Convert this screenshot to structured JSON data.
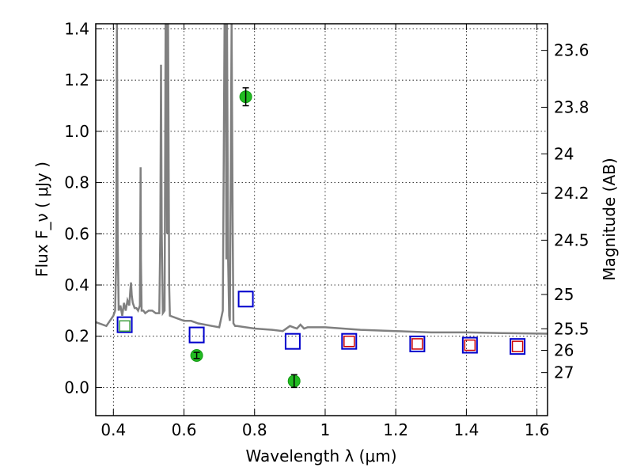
{
  "chart_data": {
    "type": "scatter",
    "title": "",
    "xlabel": "Wavelength  λ (μm)",
    "ylabel": "Flux  F_ν  ( μJy )",
    "ylabel_right": "Magnitude (AB)",
    "xlim": [
      0.35,
      1.63
    ],
    "ylim": [
      -0.11,
      1.42
    ],
    "grid": true,
    "x_ticks": [
      0.4,
      0.6,
      0.8,
      1.0,
      1.2,
      1.4,
      1.6
    ],
    "x_tick_labels": [
      "0.4",
      "0.6",
      "0.8",
      "1",
      "1.2",
      "1.4",
      "1.6"
    ],
    "y_ticks": [
      0.0,
      0.2,
      0.4,
      0.6,
      0.8,
      1.0,
      1.2,
      1.4
    ],
    "y_tick_labels": [
      "0.0",
      "0.2",
      "0.4",
      "0.6",
      "0.8",
      "1.0",
      "1.2",
      "1.4"
    ],
    "y2_ticks": [
      {
        "label": "23.6",
        "flux": 1.316
      },
      {
        "label": "23.8",
        "flux": 1.094
      },
      {
        "label": "24",
        "flux": 0.912
      },
      {
        "label": "24.2",
        "flux": 0.758
      },
      {
        "label": "24.5",
        "flux": 0.575
      },
      {
        "label": "25",
        "flux": 0.363
      },
      {
        "label": "25.5",
        "flux": 0.229
      },
      {
        "label": "26",
        "flux": 0.145
      },
      {
        "label": "27",
        "flux": 0.058
      }
    ],
    "model_spectrum": {
      "color": "#808080",
      "x": [
        0.35,
        0.38,
        0.4,
        0.405,
        0.408,
        0.41,
        0.412,
        0.415,
        0.42,
        0.425,
        0.43,
        0.435,
        0.44,
        0.445,
        0.448,
        0.45,
        0.452,
        0.455,
        0.46,
        0.465,
        0.47,
        0.475,
        0.477,
        0.478,
        0.48,
        0.485,
        0.49,
        0.5,
        0.51,
        0.52,
        0.53,
        0.533,
        0.535,
        0.537,
        0.54,
        0.545,
        0.548,
        0.55,
        0.552,
        0.555,
        0.558,
        0.56,
        0.58,
        0.6,
        0.62,
        0.64,
        0.66,
        0.68,
        0.7,
        0.71,
        0.715,
        0.718,
        0.72,
        0.722,
        0.725,
        0.728,
        0.73,
        0.735,
        0.738,
        0.74,
        0.745,
        0.75,
        0.8,
        0.85,
        0.88,
        0.9,
        0.92,
        0.93,
        0.94,
        0.95,
        1.0,
        1.05,
        1.1,
        1.2,
        1.3,
        1.4,
        1.5,
        1.63
      ],
      "y": [
        0.255,
        0.24,
        0.28,
        0.3,
        0.5,
        1.42,
        0.6,
        0.3,
        0.32,
        0.28,
        0.33,
        0.3,
        0.34,
        0.32,
        0.38,
        0.41,
        0.36,
        0.33,
        0.31,
        0.31,
        0.3,
        0.32,
        0.86,
        0.5,
        0.3,
        0.3,
        0.29,
        0.3,
        0.3,
        0.29,
        0.29,
        0.6,
        1.26,
        0.6,
        0.29,
        0.3,
        1.42,
        1.42,
        0.6,
        1.42,
        0.4,
        0.28,
        0.27,
        0.26,
        0.26,
        0.25,
        0.245,
        0.24,
        0.235,
        0.3,
        1.42,
        1.42,
        0.5,
        1.42,
        0.5,
        0.28,
        0.26,
        1.42,
        0.6,
        0.25,
        0.24,
        0.24,
        0.23,
        0.225,
        0.22,
        0.24,
        0.23,
        0.245,
        0.23,
        0.235,
        0.235,
        0.23,
        0.225,
        0.22,
        0.215,
        0.215,
        0.212,
        0.21
      ]
    },
    "model_photometry": {
      "color": "#0000cc",
      "marker": "open-square",
      "x": [
        0.432,
        0.636,
        0.775,
        0.908,
        1.068,
        1.261,
        1.41,
        1.545
      ],
      "y": [
        0.245,
        0.205,
        0.345,
        0.18,
        0.18,
        0.17,
        0.165,
        0.16
      ]
    },
    "inner_squares": [
      {
        "x": 0.432,
        "y": 0.24,
        "color": "#40a040"
      },
      {
        "x": 1.068,
        "y": 0.18,
        "color": "#cc0000"
      },
      {
        "x": 1.261,
        "y": 0.17,
        "color": "#cc0000"
      },
      {
        "x": 1.41,
        "y": 0.165,
        "color": "#cc0000"
      },
      {
        "x": 1.545,
        "y": 0.16,
        "color": "#cc0000"
      }
    ],
    "observed": {
      "color": "#22bb22",
      "x": [
        0.636,
        0.775,
        0.912
      ],
      "y": [
        0.125,
        1.135,
        0.025
      ],
      "yerr": [
        0.012,
        0.035,
        0.025
      ]
    }
  }
}
